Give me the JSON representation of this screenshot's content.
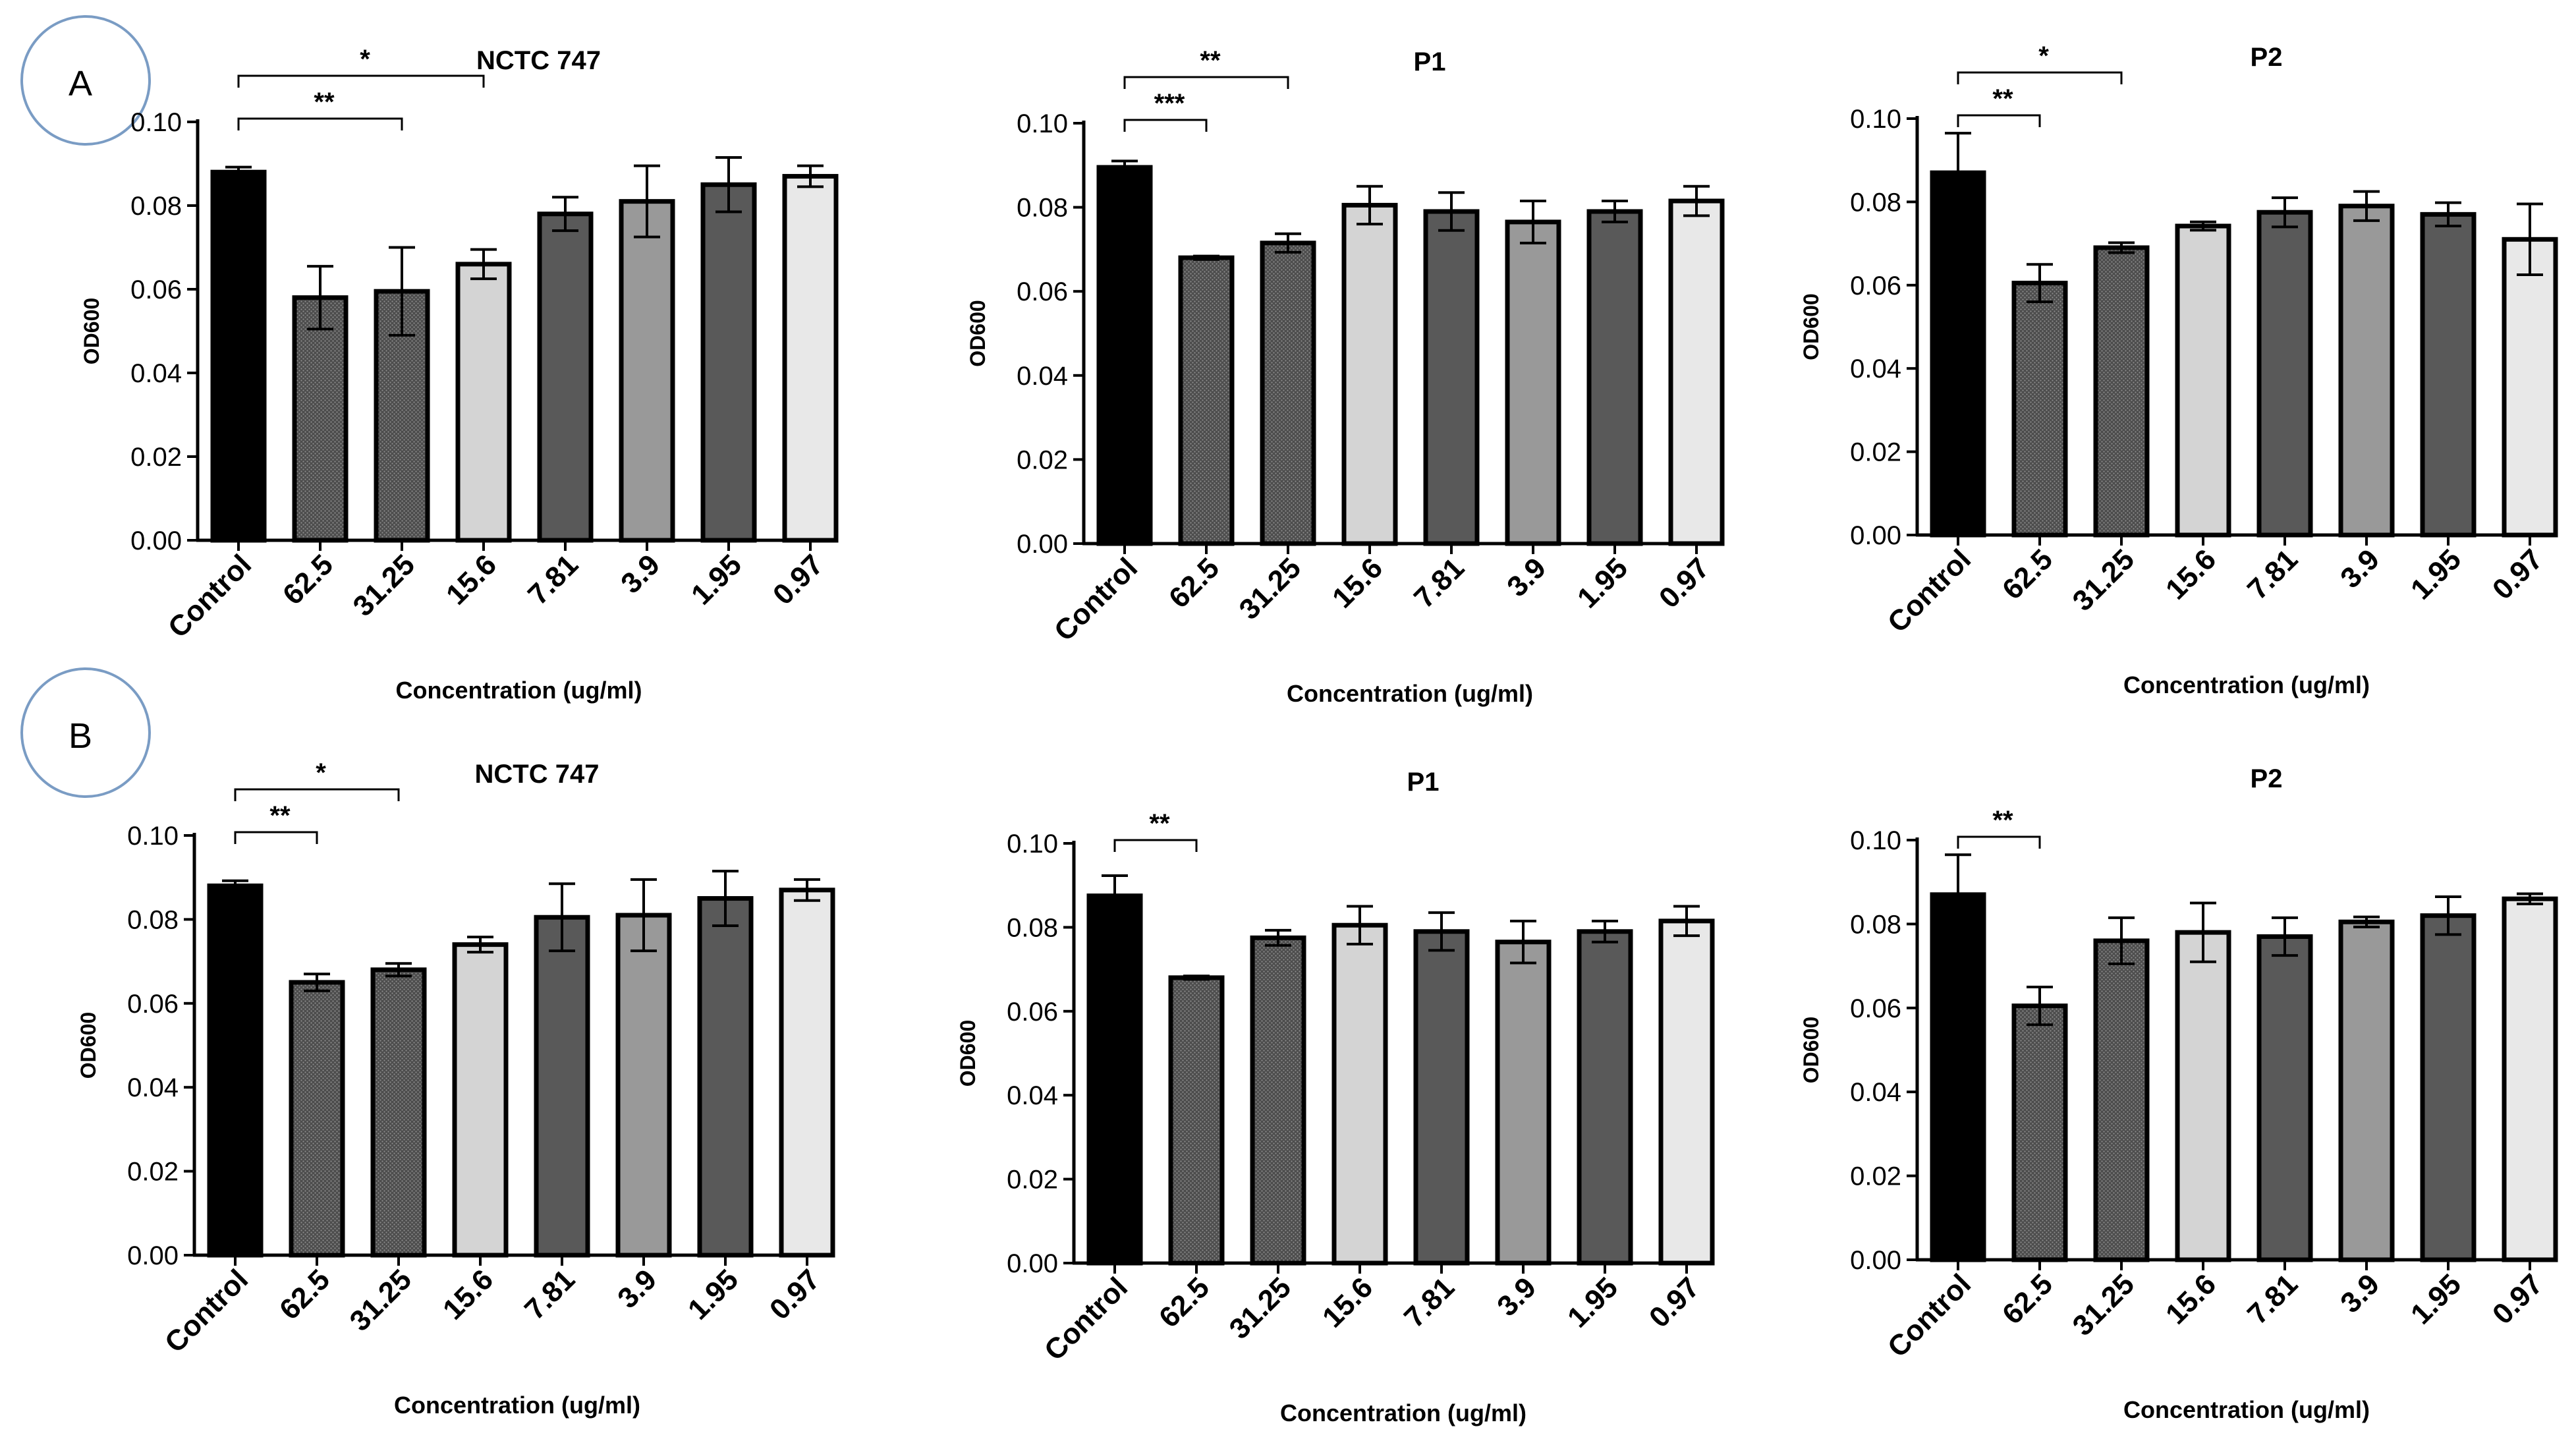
{
  "figure": {
    "panel_labels": [
      "A",
      "B"
    ]
  },
  "chart_data": [
    {
      "type": "bar",
      "row": "A",
      "title": "NCTC 747",
      "xlabel": "Concentration (ug/ml)",
      "ylabel": "OD600",
      "ylim": [
        0,
        0.1
      ],
      "yticks": [
        "0.00",
        "0.02",
        "0.04",
        "0.06",
        "0.08",
        "0.10"
      ],
      "categories": [
        "Control",
        "62.5",
        "31.25",
        "15.6",
        "7.81",
        "3.9",
        "1.95",
        "0.97"
      ],
      "values": [
        0.088,
        0.058,
        0.0595,
        0.066,
        0.078,
        0.081,
        0.085,
        0.087
      ],
      "errors": [
        0.0012,
        0.0075,
        0.0105,
        0.0035,
        0.004,
        0.0085,
        0.0065,
        0.0025
      ],
      "significance": [
        {
          "from": 0,
          "to": 3,
          "label": "*"
        },
        {
          "from": 0,
          "to": 2,
          "label": "**"
        }
      ]
    },
    {
      "type": "bar",
      "row": "A",
      "title": "P1",
      "xlabel": "Concentration (ug/ml)",
      "ylabel": "OD600",
      "ylim": [
        0,
        0.1
      ],
      "yticks": [
        "0.00",
        "0.02",
        "0.04",
        "0.06",
        "0.08",
        "0.10"
      ],
      "categories": [
        "Control",
        "62.5",
        "31.25",
        "15.6",
        "7.81",
        "3.9",
        "1.95",
        "0.97"
      ],
      "values": [
        0.0895,
        0.068,
        0.0715,
        0.0805,
        0.079,
        0.0765,
        0.079,
        0.0815
      ],
      "errors": [
        0.0015,
        0.0004,
        0.0022,
        0.0045,
        0.0045,
        0.005,
        0.0025,
        0.0035
      ],
      "significance": [
        {
          "from": 0,
          "to": 2,
          "label": "**"
        },
        {
          "from": 0,
          "to": 1,
          "label": "***"
        }
      ]
    },
    {
      "type": "bar",
      "row": "A",
      "title": "P2",
      "xlabel": "Concentration (ug/ml)",
      "ylabel": "OD600",
      "ylim": [
        0,
        0.1
      ],
      "yticks": [
        "0.00",
        "0.02",
        "0.04",
        "0.06",
        "0.08",
        "0.10"
      ],
      "categories": [
        "Control",
        "62.5",
        "31.25",
        "15.6",
        "7.81",
        "3.9",
        "1.95",
        "0.97"
      ],
      "values": [
        0.087,
        0.0605,
        0.069,
        0.0742,
        0.0775,
        0.079,
        0.077,
        0.071
      ],
      "errors": [
        0.0095,
        0.0045,
        0.0012,
        0.001,
        0.0035,
        0.0035,
        0.0028,
        0.0085
      ],
      "significance": [
        {
          "from": 0,
          "to": 2,
          "label": "*"
        },
        {
          "from": 0,
          "to": 1,
          "label": "**"
        }
      ]
    },
    {
      "type": "bar",
      "row": "B",
      "title": "NCTC 747",
      "xlabel": "Concentration (ug/ml)",
      "ylabel": "OD600",
      "ylim": [
        0,
        0.1
      ],
      "yticks": [
        "0.00",
        "0.02",
        "0.04",
        "0.06",
        "0.08",
        "0.10"
      ],
      "categories": [
        "Control",
        "62.5",
        "31.25",
        "15.6",
        "7.81",
        "3.9",
        "1.95",
        "0.97"
      ],
      "values": [
        0.088,
        0.065,
        0.068,
        0.074,
        0.0805,
        0.081,
        0.085,
        0.087
      ],
      "errors": [
        0.0012,
        0.002,
        0.0015,
        0.0018,
        0.008,
        0.0085,
        0.0065,
        0.0025
      ],
      "significance": [
        {
          "from": 0,
          "to": 2,
          "label": "*"
        },
        {
          "from": 0,
          "to": 1,
          "label": "**"
        }
      ]
    },
    {
      "type": "bar",
      "row": "B",
      "title": "P1",
      "xlabel": "Concentration (ug/ml)",
      "ylabel": "OD600",
      "ylim": [
        0,
        0.1
      ],
      "yticks": [
        "0.00",
        "0.02",
        "0.04",
        "0.06",
        "0.08",
        "0.10"
      ],
      "categories": [
        "Control",
        "62.5",
        "31.25",
        "15.6",
        "7.81",
        "3.9",
        "1.95",
        "0.97"
      ],
      "values": [
        0.0875,
        0.068,
        0.0775,
        0.0805,
        0.079,
        0.0765,
        0.079,
        0.0815
      ],
      "errors": [
        0.0048,
        0.0004,
        0.0018,
        0.0045,
        0.0045,
        0.005,
        0.0025,
        0.0035
      ],
      "significance": [
        {
          "from": 0,
          "to": 1,
          "label": "**"
        }
      ]
    },
    {
      "type": "bar",
      "row": "B",
      "title": "P2",
      "xlabel": "Concentration (ug/ml)",
      "ylabel": "OD600",
      "ylim": [
        0,
        0.1
      ],
      "yticks": [
        "0.00",
        "0.02",
        "0.04",
        "0.06",
        "0.08",
        "0.10"
      ],
      "categories": [
        "Control",
        "62.5",
        "31.25",
        "15.6",
        "7.81",
        "3.9",
        "1.95",
        "0.97"
      ],
      "values": [
        0.087,
        0.0605,
        0.076,
        0.078,
        0.077,
        0.0805,
        0.082,
        0.086
      ],
      "errors": [
        0.0095,
        0.0045,
        0.0055,
        0.007,
        0.0045,
        0.0012,
        0.0045,
        0.0012
      ],
      "significance": [
        {
          "from": 0,
          "to": 1,
          "label": "**"
        }
      ]
    }
  ]
}
